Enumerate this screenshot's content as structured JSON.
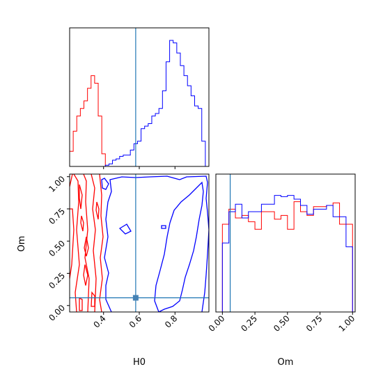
{
  "colors": {
    "series_a": "#ff0000",
    "series_b": "#0000ff",
    "truth": "#1f77b4",
    "axis": "#000000"
  },
  "chart_data": [
    {
      "panel": "H0-marginal",
      "type": "histogram",
      "xlim": [
        0.21,
        0.99
      ],
      "ylim": [
        0,
        1.0
      ],
      "ticks_shown": false,
      "truth_x": 0.58,
      "series": [
        {
          "color": "#ff0000",
          "x_edges": [
            0.21,
            0.23,
            0.25,
            0.27,
            0.29,
            0.31,
            0.33,
            0.35,
            0.37,
            0.39,
            0.41,
            0.43
          ],
          "values": [
            0.12,
            0.28,
            0.4,
            0.46,
            0.52,
            0.62,
            0.72,
            0.66,
            0.4,
            0.1,
            0.0
          ]
        },
        {
          "color": "#0000ff",
          "x_edges": [
            0.21,
            0.23,
            0.25,
            0.27,
            0.29,
            0.31,
            0.33,
            0.35,
            0.37,
            0.39,
            0.41,
            0.43,
            0.45,
            0.47,
            0.49,
            0.51,
            0.53,
            0.55,
            0.57,
            0.59,
            0.61,
            0.63,
            0.65,
            0.67,
            0.69,
            0.71,
            0.73,
            0.75,
            0.77,
            0.79,
            0.81,
            0.83,
            0.85,
            0.87,
            0.89,
            0.91,
            0.93,
            0.95,
            0.97
          ],
          "values": [
            0,
            0,
            0,
            0,
            0,
            0,
            0,
            0,
            0,
            0,
            0.01,
            0.02,
            0.05,
            0.06,
            0.08,
            0.09,
            0.09,
            0.13,
            0.18,
            0.2,
            0.3,
            0.32,
            0.34,
            0.4,
            0.42,
            0.46,
            0.6,
            0.83,
            1.0,
            0.98,
            0.9,
            0.8,
            0.72,
            0.64,
            0.56,
            0.48,
            0.46,
            0.2
          ]
        }
      ]
    },
    {
      "panel": "H0-Om-joint",
      "type": "contour",
      "xlabel": "H0",
      "ylabel": "Om",
      "xlim": [
        0.21,
        0.99
      ],
      "ylim": [
        -0.05,
        1.02
      ],
      "xticks": [
        "0.4",
        "0.6",
        "0.8"
      ],
      "xtick_values": [
        0.4,
        0.6,
        0.8
      ],
      "yticks": [
        "0.00",
        "0.25",
        "0.50",
        "0.75",
        "1.00"
      ],
      "ytick_values": [
        0.0,
        0.25,
        0.5,
        0.75,
        1.0
      ],
      "truth": [
        0.58,
        0.06
      ]
    },
    {
      "panel": "Om-marginal",
      "type": "histogram",
      "xlabel": "Om",
      "xlim": [
        -0.05,
        1.02
      ],
      "ylim": [
        0,
        1.0
      ],
      "xticks": [
        "0.00",
        "0.25",
        "0.50",
        "0.75",
        "1.00"
      ],
      "xtick_values": [
        0.0,
        0.25,
        0.5,
        0.75,
        1.0
      ],
      "truth_x": 0.06,
      "series": [
        {
          "color": "#ff0000",
          "x_edges": [
            -0.05,
            0.0,
            0.05,
            0.1,
            0.15,
            0.2,
            0.25,
            0.3,
            0.35,
            0.4,
            0.45,
            0.5,
            0.55,
            0.6,
            0.65,
            0.7,
            0.75,
            0.8,
            0.85,
            0.9,
            0.95,
            1.0
          ],
          "values": [
            0.0,
            0.7,
            0.82,
            0.75,
            0.77,
            0.72,
            0.66,
            0.8,
            0.8,
            0.74,
            0.77,
            0.66,
            0.88,
            0.8,
            0.77,
            0.84,
            0.84,
            0.85,
            0.87,
            0.7,
            0.7
          ]
        },
        {
          "color": "#0000ff",
          "x_edges": [
            -0.05,
            0.0,
            0.05,
            0.1,
            0.15,
            0.2,
            0.25,
            0.3,
            0.35,
            0.4,
            0.45,
            0.5,
            0.55,
            0.6,
            0.65,
            0.7,
            0.75,
            0.8,
            0.85,
            0.9,
            0.95,
            1.0
          ],
          "values": [
            0.0,
            0.55,
            0.8,
            0.86,
            0.75,
            0.8,
            0.8,
            0.86,
            0.86,
            0.93,
            0.92,
            0.93,
            0.9,
            0.85,
            0.78,
            0.82,
            0.82,
            0.85,
            0.76,
            0.76,
            0.52
          ]
        }
      ]
    }
  ]
}
